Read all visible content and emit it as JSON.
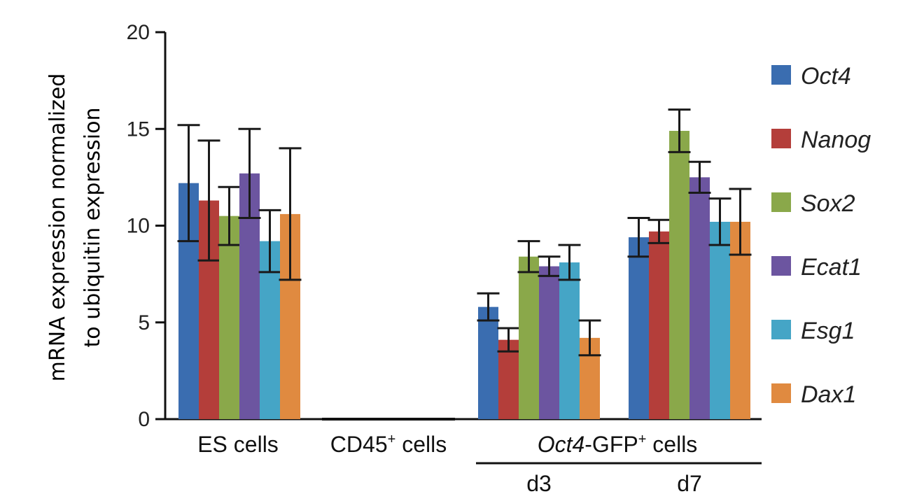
{
  "chart_data": {
    "type": "bar",
    "ylabel_line1": "mRNA expression normalized",
    "ylabel_line2": "to ubiquitin expression",
    "ylim": [
      0,
      20
    ],
    "yticks": [
      "0",
      "5",
      "10",
      "15",
      "20"
    ],
    "groups": [
      "ES cells",
      "CD45+ cells",
      "Oct4-GFP+ d3",
      "Oct4-GFP+ d7"
    ],
    "category_labels": {
      "es": "ES cells",
      "cd45_main": "CD45",
      "cd45_sup": "+",
      "cd45_tail": " cells",
      "oct_italic": "Oct4",
      "oct_main": "-GFP",
      "oct_sup": "+",
      "oct_tail": " cells",
      "d3": "d3",
      "d7": "d7"
    },
    "series": [
      {
        "name": "Oct4",
        "color": "#3a6db0",
        "values": [
          12.2,
          0,
          5.8,
          9.4
        ],
        "errors": [
          3.0,
          0,
          0.7,
          1.0
        ]
      },
      {
        "name": "Nanog",
        "color": "#b43e3a",
        "values": [
          11.3,
          0,
          4.1,
          9.7
        ],
        "errors": [
          3.1,
          0,
          0.6,
          0.6
        ]
      },
      {
        "name": "Sox2",
        "color": "#8aa84a",
        "values": [
          10.5,
          0,
          8.4,
          14.9
        ],
        "errors": [
          1.5,
          0,
          0.8,
          1.1
        ]
      },
      {
        "name": "Ecat1",
        "color": "#6c55a0",
        "values": [
          12.7,
          0,
          7.9,
          12.5
        ],
        "errors": [
          2.3,
          0,
          0.5,
          0.8
        ]
      },
      {
        "name": "Esg1",
        "color": "#45a5c6",
        "values": [
          9.2,
          0,
          8.1,
          10.2
        ],
        "errors": [
          1.6,
          0,
          0.9,
          1.2
        ]
      },
      {
        "name": "Dax1",
        "color": "#e08a40",
        "values": [
          10.6,
          0,
          4.2,
          10.2
        ],
        "errors": [
          3.4,
          0,
          0.9,
          1.7
        ]
      }
    ]
  }
}
